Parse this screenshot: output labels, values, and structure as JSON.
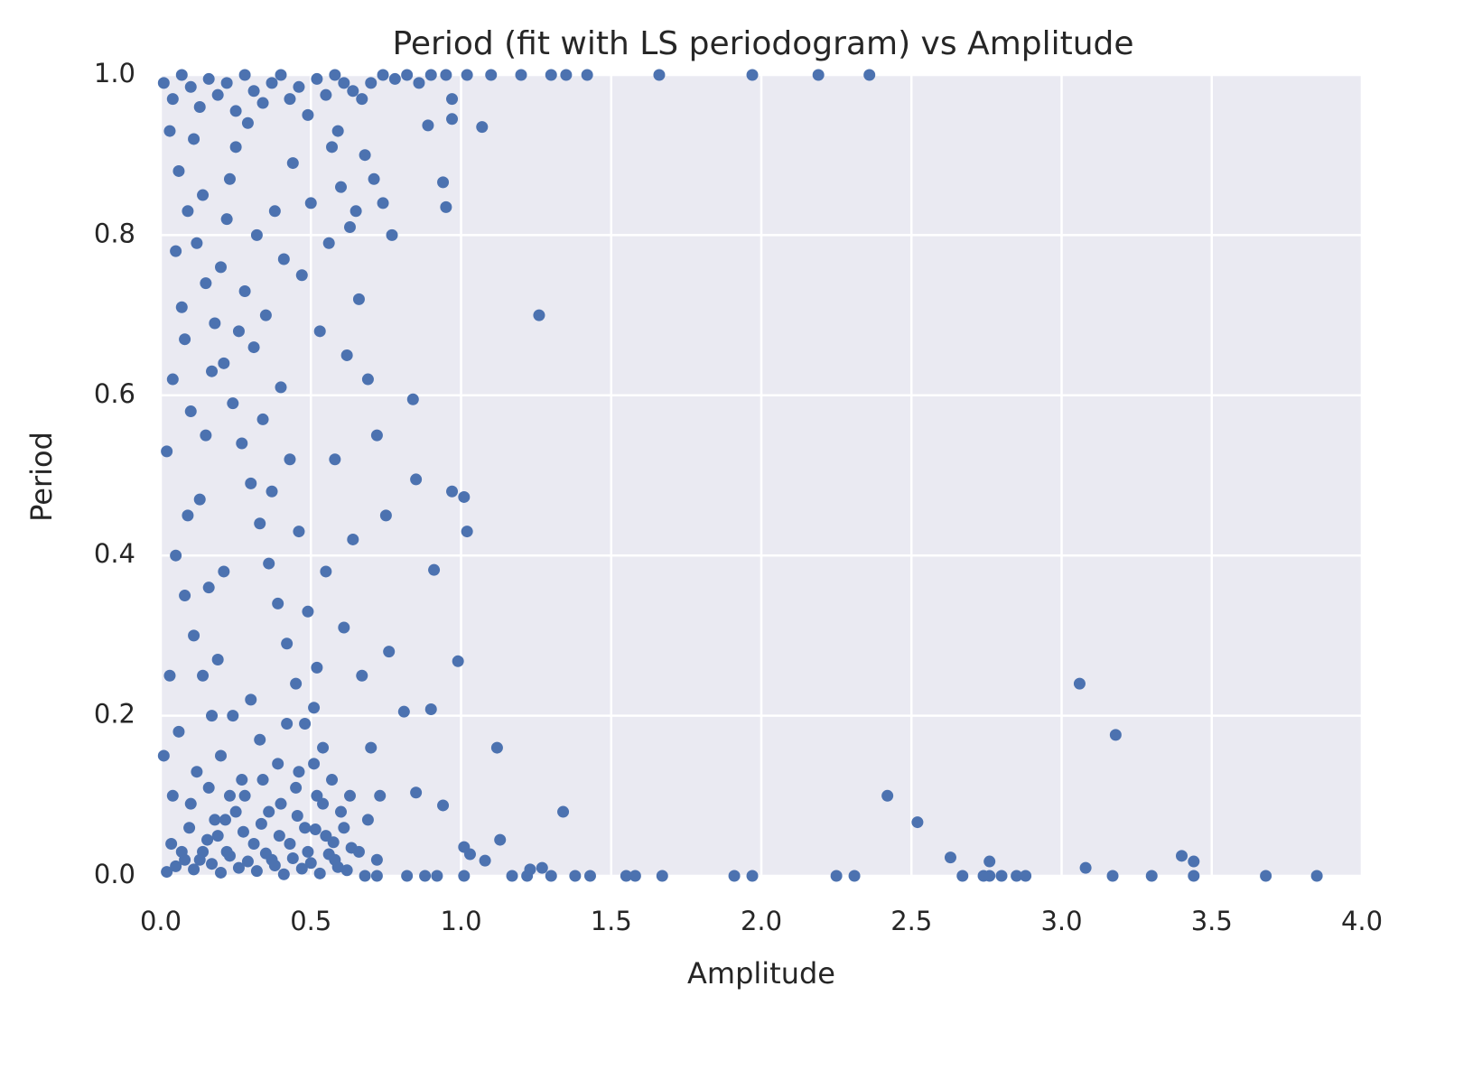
{
  "chart_data": {
    "type": "scatter",
    "title": "Period (fit with LS periodogram) vs Amplitude",
    "x_label": "Amplitude",
    "y_label": "Period",
    "xlim": [
      0,
      4
    ],
    "ylim": [
      0,
      1
    ],
    "xticks": [
      {
        "value": 0,
        "label": "0.0"
      },
      0.5,
      {
        "value": 1,
        "label": "1.0"
      },
      1.5,
      {
        "value": 2,
        "label": "2.0"
      },
      2.5,
      {
        "value": 3,
        "label": "3.0"
      },
      3.5,
      {
        "value": 4,
        "label": "4.0"
      }
    ],
    "yticks": [
      {
        "value": 0,
        "label": "0.0"
      },
      0.2,
      0.4,
      0.6,
      0.8,
      {
        "value": 1,
        "label": "1.0"
      }
    ],
    "grid": true,
    "x": [
      0.02,
      0.05,
      0.08,
      0.11,
      0.14,
      0.17,
      0.2,
      0.23,
      0.26,
      0.29,
      0.32,
      0.35,
      0.38,
      0.41,
      0.44,
      0.47,
      0.5,
      0.53,
      0.56,
      0.59,
      0.62,
      0.035,
      0.095,
      0.155,
      0.215,
      0.275,
      0.335,
      0.395,
      0.455,
      0.515,
      0.575,
      0.635,
      0.68,
      0.72,
      0.01,
      0.04,
      0.07,
      0.1,
      0.13,
      0.16,
      0.19,
      0.22,
      0.25,
      0.28,
      0.31,
      0.34,
      0.37,
      0.4,
      0.43,
      0.46,
      0.49,
      0.52,
      0.55,
      0.58,
      0.61,
      0.64,
      0.67,
      0.7,
      0.74,
      0.78,
      0.82,
      0.86,
      0.03,
      0.06,
      0.09,
      0.12,
      0.15,
      0.18,
      0.21,
      0.24,
      0.27,
      0.3,
      0.33,
      0.36,
      0.39,
      0.42,
      0.45,
      0.48,
      0.51,
      0.54,
      0.57,
      0.6,
      0.63,
      0.66,
      0.69,
      0.72,
      0.75,
      0.05,
      0.08,
      0.11,
      0.14,
      0.17,
      0.2,
      0.23,
      0.02,
      0.04,
      0.07,
      0.1,
      0.13,
      0.16,
      0.19,
      0.22,
      0.25,
      0.28,
      0.31,
      0.34,
      0.37,
      0.4,
      0.43,
      0.46,
      0.49,
      0.52,
      0.55,
      0.58,
      0.61,
      0.64,
      0.67,
      0.7,
      0.73,
      0.76,
      0.01,
      0.03,
      0.06,
      0.09,
      0.12,
      0.15,
      0.18,
      0.21,
      0.24,
      0.27,
      0.3,
      0.33,
      0.36,
      0.39,
      0.42,
      0.45,
      0.48,
      0.51,
      0.54,
      0.57,
      0.6,
      0.63,
      0.05,
      0.08,
      0.11,
      0.14,
      0.17,
      0.2,
      0.23,
      0.26,
      0.29,
      0.32,
      0.35,
      0.38,
      0.41,
      0.44,
      0.47,
      0.5,
      0.53,
      0.56,
      0.59,
      0.62,
      0.65,
      0.68,
      0.71,
      0.74,
      0.77,
      0.04,
      0.07,
      0.1,
      0.13,
      0.16,
      0.19,
      0.22,
      0.25,
      0.28,
      0.31,
      0.34,
      0.37,
      0.4,
      0.43,
      0.46,
      0.49,
      0.52,
      0.55,
      0.58,
      0.61,
      0.66,
      0.69,
      0.72,
      1.26,
      0.97,
      0.97,
      1.07,
      0.94,
      0.95,
      0.89,
      0.84,
      0.85,
      0.97,
      1.01,
      1.02,
      0.91,
      0.99,
      0.9,
      0.81,
      1.12,
      0.85,
      0.94,
      1.34,
      1.13,
      1.01,
      1.03,
      1.08,
      1.23,
      1.27,
      3.06,
      3.18,
      2.42,
      2.52,
      2.63,
      2.76,
      3.4,
      3.44,
      3.08,
      0.82,
      0.88,
      0.92,
      1.01,
      1.17,
      1.22,
      1.3,
      1.38,
      1.43,
      1.55,
      1.58,
      1.67,
      1.91,
      1.97,
      2.25,
      2.31,
      2.67,
      2.74,
      2.76,
      2.8,
      2.85,
      2.88,
      3.17,
      3.3,
      3.44,
      3.68,
      3.85,
      1.02,
      1.1,
      1.2,
      1.3,
      1.35,
      1.42,
      1.66,
      1.97,
      2.19,
      2.36,
      0.9,
      0.95
    ],
    "series": [
      {
        "color": "#4c72b0",
        "values": [
          0.005,
          0.012,
          0.02,
          0.008,
          0.03,
          0.015,
          0.004,
          0.025,
          0.01,
          0.018,
          0.006,
          0.028,
          0.013,
          0.002,
          0.022,
          0.009,
          0.016,
          0.003,
          0.027,
          0.011,
          0.007,
          0.04,
          0.06,
          0.045,
          0.07,
          0.055,
          0.065,
          0.05,
          0.075,
          0.058,
          0.042,
          0.035,
          0,
          0,
          0.99,
          0.97,
          1,
          0.985,
          0.96,
          0.995,
          0.975,
          0.99,
          0.955,
          1,
          0.98,
          0.965,
          0.99,
          1,
          0.97,
          0.985,
          0.95,
          0.995,
          0.975,
          1,
          0.99,
          0.98,
          0.97,
          0.99,
          1,
          0.995,
          1,
          0.99,
          0.93,
          0.88,
          0.83,
          0.79,
          0.74,
          0.69,
          0.64,
          0.59,
          0.54,
          0.49,
          0.44,
          0.39,
          0.34,
          0.29,
          0.24,
          0.19,
          0.14,
          0.09,
          0.91,
          0.86,
          0.81,
          0.72,
          0.62,
          0.55,
          0.45,
          0.4,
          0.35,
          0.3,
          0.25,
          0.2,
          0.15,
          0.1,
          0.53,
          0.62,
          0.71,
          0.58,
          0.47,
          0.36,
          0.27,
          0.82,
          0.91,
          0.73,
          0.66,
          0.57,
          0.48,
          0.61,
          0.52,
          0.43,
          0.33,
          0.26,
          0.38,
          0.52,
          0.31,
          0.42,
          0.25,
          0.16,
          0.1,
          0.28,
          0.15,
          0.25,
          0.18,
          0.45,
          0.13,
          0.55,
          0.07,
          0.38,
          0.2,
          0.12,
          0.22,
          0.17,
          0.08,
          0.14,
          0.19,
          0.11,
          0.06,
          0.21,
          0.16,
          0.12,
          0.08,
          0.1,
          0.78,
          0.67,
          0.92,
          0.85,
          0.63,
          0.76,
          0.87,
          0.68,
          0.94,
          0.8,
          0.7,
          0.83,
          0.77,
          0.89,
          0.75,
          0.84,
          0.68,
          0.79,
          0.93,
          0.65,
          0.83,
          0.9,
          0.87,
          0.84,
          0.8,
          0.1,
          0.03,
          0.09,
          0.02,
          0.11,
          0.05,
          0.03,
          0.08,
          0.1,
          0.04,
          0.12,
          0.02,
          0.09,
          0.04,
          0.13,
          0.03,
          0.1,
          0.05,
          0.02,
          0.06,
          0.03,
          0.07,
          0.02,
          0.7,
          0.97,
          0.945,
          0.935,
          0.866,
          0.835,
          0.937,
          0.595,
          0.495,
          0.48,
          0.473,
          0.43,
          0.382,
          0.268,
          0.208,
          0.205,
          0.16,
          0.104,
          0.088,
          0.08,
          0.045,
          0.036,
          0.027,
          0.019,
          0.008,
          0.01,
          0.24,
          0.176,
          0.1,
          0.067,
          0.023,
          0.018,
          0.025,
          0.018,
          0.01,
          0,
          0,
          0,
          0,
          0,
          0,
          0,
          0,
          0,
          0,
          0,
          0,
          0,
          0,
          0,
          0,
          0,
          0,
          0,
          0,
          0,
          0,
          0,
          0,
          0,
          0,
          0,
          1,
          1,
          1,
          1,
          1,
          1,
          1,
          1,
          1,
          1,
          1,
          1
        ]
      }
    ]
  }
}
